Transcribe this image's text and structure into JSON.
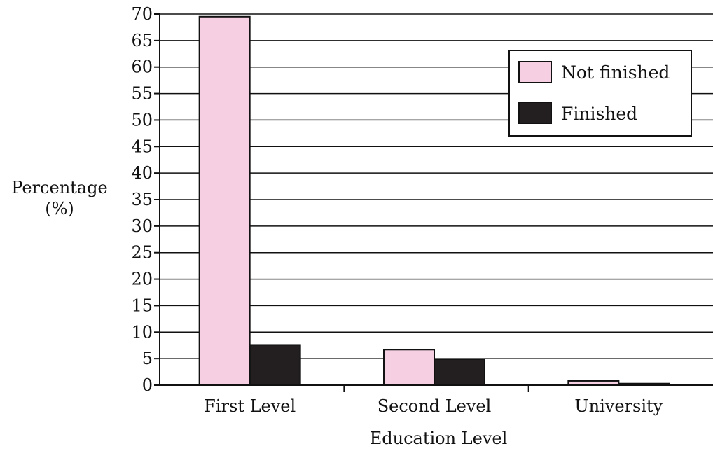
{
  "chart_data": {
    "type": "bar",
    "title": "",
    "xlabel": "Education Level",
    "ylabel_lines": [
      "Percentage",
      "(%)"
    ],
    "categories": [
      "First Level",
      "Second Level",
      "University"
    ],
    "series": [
      {
        "name": "Not finished",
        "color": "#f7cfe2",
        "values": [
          69.5,
          6.7,
          0.8
        ]
      },
      {
        "name": "Finished",
        "color": "#231f20",
        "values": [
          7.6,
          4.9,
          0.3
        ]
      }
    ],
    "ylim": [
      0,
      70
    ],
    "ytick_step": 5,
    "grid": true,
    "legend_position": "top-right"
  }
}
